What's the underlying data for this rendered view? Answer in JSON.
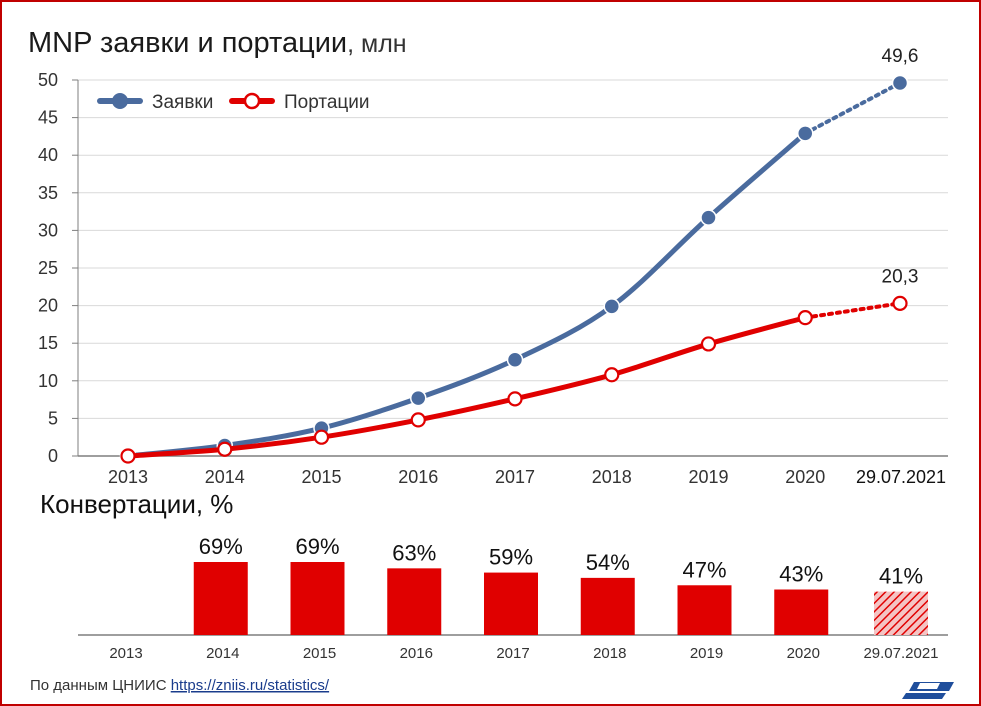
{
  "chart_data": [
    {
      "type": "line",
      "title": "MNP заявки и портации",
      "title_unit": ", млн",
      "categories": [
        "2013",
        "2014",
        "2015",
        "2016",
        "2017",
        "2018",
        "2019",
        "2020",
        "29.07.2021"
      ],
      "ylim": [
        0,
        50
      ],
      "yticks": [
        "0",
        "5",
        "10",
        "15",
        "20",
        "25",
        "30",
        "35",
        "40",
        "45",
        "50"
      ],
      "grid": "horizontal",
      "legend_position": "top-left",
      "projection_from_index": 7,
      "series": [
        {
          "name": "Заявки",
          "color": "#4a6b9e",
          "marker": "filled",
          "values": [
            0,
            1.4,
            3.7,
            7.7,
            12.8,
            19.9,
            31.7,
            42.9,
            49.6
          ],
          "end_label": "49,6"
        },
        {
          "name": "Портации",
          "color": "#e00000",
          "marker": "hollow",
          "values": [
            0,
            0.9,
            2.5,
            4.8,
            7.6,
            10.8,
            14.9,
            18.4,
            20.3
          ],
          "end_label": "20,3"
        }
      ]
    },
    {
      "type": "bar",
      "title": "Конвертации, %",
      "categories": [
        "2013",
        "2014",
        "2015",
        "2016",
        "2017",
        "2018",
        "2019",
        "2020",
        "29.07.2021"
      ],
      "values": [
        null,
        69,
        69,
        63,
        59,
        54,
        47,
        43,
        41
      ],
      "labels": [
        "",
        "69%",
        "69%",
        "63%",
        "59%",
        "54%",
        "47%",
        "43%",
        "41%"
      ],
      "color": "#e00000",
      "hatched_index": 8
    }
  ],
  "footer": {
    "source_text": "По данным ЦНИИС",
    "link_text": "https://zniis.ru/statistics/"
  },
  "logo_icon": "zniis-logo-icon",
  "frame_color": "#c00000"
}
